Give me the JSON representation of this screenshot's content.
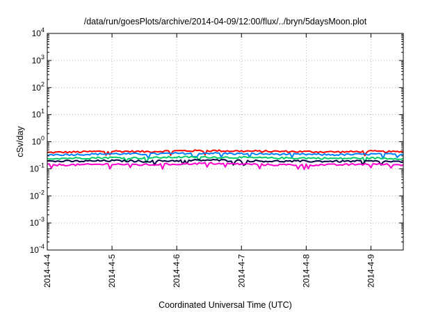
{
  "chart_data": {
    "type": "line",
    "title": "/data/run/goesPlots/archive/2014-04-09/12:00/flux/../bryn/5daysMoon.plot",
    "xlabel": "Coordinated Universal Time (UTC)",
    "ylabel": "cSv/day",
    "yscale": "log",
    "ylim": [
      0.0001,
      10000
    ],
    "xlim": [
      "2014-04-04 00:00",
      "2014-04-09 12:00"
    ],
    "x_ticks": [
      "2014-4-4",
      "2014-4-5",
      "2014-4-6",
      "2014-4-7",
      "2014-4-8",
      "2014-4-9"
    ],
    "y_ticks": [
      {
        "base": "10",
        "exp": "-4"
      },
      {
        "base": "10",
        "exp": "-3"
      },
      {
        "base": "10",
        "exp": "-2"
      },
      {
        "base": "10",
        "exp": "-1"
      },
      {
        "base": "10",
        "exp": "0"
      },
      {
        "base": "10",
        "exp": "1"
      },
      {
        "base": "10",
        "exp": "2"
      },
      {
        "base": "10",
        "exp": "3"
      },
      {
        "base": "10",
        "exp": "4"
      }
    ],
    "grid": true,
    "legend": "none",
    "x": [
      "2014-04-04 00:00",
      "2014-04-04 12:00",
      "2014-04-05 00:00",
      "2014-04-05 12:00",
      "2014-04-06 00:00",
      "2014-04-06 12:00",
      "2014-04-07 00:00",
      "2014-04-07 12:00",
      "2014-04-08 00:00",
      "2014-04-08 12:00",
      "2014-04-09 00:00",
      "2014-04-09 12:00"
    ],
    "series": [
      {
        "color": "#ff0000",
        "values": [
          0.4,
          0.42,
          0.45,
          0.43,
          0.46,
          0.47,
          0.45,
          0.44,
          0.43,
          0.42,
          0.44,
          0.42
        ]
      },
      {
        "color": "#0080ff",
        "values": [
          0.33,
          0.34,
          0.36,
          0.35,
          0.37,
          0.38,
          0.36,
          0.35,
          0.34,
          0.33,
          0.35,
          0.34
        ]
      },
      {
        "color": "#00cc66",
        "values": [
          0.24,
          0.25,
          0.26,
          0.25,
          0.27,
          0.27,
          0.26,
          0.25,
          0.25,
          0.24,
          0.25,
          0.24
        ]
      },
      {
        "color": "#000040",
        "values": [
          0.19,
          0.19,
          0.2,
          0.19,
          0.2,
          0.21,
          0.2,
          0.19,
          0.19,
          0.19,
          0.19,
          0.18
        ]
      },
      {
        "color": "#ff00cc",
        "values": [
          0.14,
          0.14,
          0.15,
          0.14,
          0.15,
          0.16,
          0.15,
          0.14,
          0.14,
          0.14,
          0.15,
          0.14
        ]
      }
    ]
  }
}
